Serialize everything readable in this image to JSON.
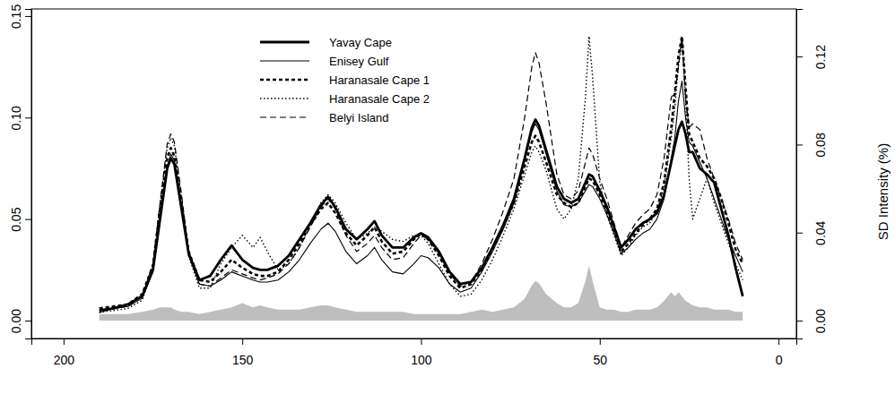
{
  "chart_data": {
    "type": "line",
    "x": [
      190,
      186,
      182,
      178,
      175,
      173,
      171,
      170,
      169,
      167,
      165,
      162,
      159,
      156,
      153,
      150,
      147,
      145,
      143,
      140,
      137,
      134,
      131,
      128,
      126,
      124,
      121,
      118,
      115,
      113,
      111,
      108,
      105,
      102,
      100,
      98,
      95,
      92,
      89,
      86,
      83,
      80,
      77,
      74,
      71,
      69,
      68,
      67,
      65,
      62,
      60,
      58,
      56,
      54,
      53,
      52,
      50,
      48,
      46,
      44,
      42,
      40,
      38,
      36,
      34,
      32,
      30,
      29,
      28,
      27,
      26,
      25,
      24,
      22,
      20,
      18,
      16,
      14,
      12,
      10
    ],
    "xlim": [
      209,
      -5
    ],
    "xticks": [
      200,
      150,
      100,
      50,
      0
    ],
    "ylim": [
      -0.0088,
      0.1535
    ],
    "yticks": [
      {
        "value": 0,
        "label": "0.00"
      },
      {
        "value": 0.05,
        "label": "0.05"
      },
      {
        "value": 0.1,
        "label": "0.10"
      },
      {
        "value": 0.15,
        "label": "0.15"
      }
    ],
    "y2lim": [
      -0.0081,
      0.1416
    ],
    "y2ticks": [
      {
        "value": 0,
        "label": "0.00"
      },
      {
        "value": 0.04,
        "label": "0.04"
      },
      {
        "value": 0.08,
        "label": "0.08"
      },
      {
        "value": 0.12,
        "label": "0.12"
      }
    ],
    "y2label": "SD Intensity (%)",
    "legend": "top-left",
    "series": [
      {
        "name": "Yavay Cape",
        "color": "#000000",
        "line_style": "solid-thick",
        "values": [
          0.005,
          0.006,
          0.008,
          0.012,
          0.025,
          0.05,
          0.075,
          0.08,
          0.077,
          0.055,
          0.033,
          0.02,
          0.022,
          0.03,
          0.037,
          0.03,
          0.026,
          0.025,
          0.025,
          0.027,
          0.032,
          0.04,
          0.048,
          0.057,
          0.061,
          0.056,
          0.045,
          0.04,
          0.045,
          0.049,
          0.042,
          0.036,
          0.036,
          0.041,
          0.043,
          0.041,
          0.034,
          0.024,
          0.018,
          0.019,
          0.026,
          0.036,
          0.047,
          0.06,
          0.08,
          0.095,
          0.099,
          0.096,
          0.084,
          0.066,
          0.06,
          0.058,
          0.06,
          0.068,
          0.072,
          0.071,
          0.064,
          0.056,
          0.046,
          0.036,
          0.04,
          0.045,
          0.048,
          0.05,
          0.053,
          0.062,
          0.078,
          0.086,
          0.094,
          0.098,
          0.092,
          0.083,
          0.083,
          0.075,
          0.072,
          0.068,
          0.055,
          0.042,
          0.026,
          0.012
        ]
      },
      {
        "name": "Enisey Gulf",
        "color": "#000000",
        "line_style": "solid",
        "values": [
          0.004,
          0.006,
          0.007,
          0.011,
          0.024,
          0.05,
          0.076,
          0.082,
          0.079,
          0.056,
          0.032,
          0.018,
          0.017,
          0.02,
          0.024,
          0.022,
          0.02,
          0.019,
          0.019,
          0.02,
          0.024,
          0.03,
          0.038,
          0.045,
          0.048,
          0.044,
          0.034,
          0.028,
          0.032,
          0.036,
          0.03,
          0.024,
          0.023,
          0.028,
          0.032,
          0.031,
          0.026,
          0.018,
          0.014,
          0.016,
          0.024,
          0.034,
          0.045,
          0.058,
          0.079,
          0.093,
          0.097,
          0.094,
          0.082,
          0.064,
          0.057,
          0.056,
          0.058,
          0.064,
          0.067,
          0.066,
          0.06,
          0.052,
          0.043,
          0.033,
          0.036,
          0.04,
          0.043,
          0.045,
          0.05,
          0.06,
          0.08,
          0.09,
          0.108,
          0.118,
          0.1,
          0.088,
          0.086,
          0.078,
          0.07,
          0.06,
          0.05,
          0.04,
          0.032,
          0.024
        ]
      },
      {
        "name": "Haranasale Cape 1",
        "color": "#000000",
        "line_style": "dashed-thick",
        "values": [
          0.006,
          0.007,
          0.008,
          0.013,
          0.027,
          0.055,
          0.08,
          0.085,
          0.081,
          0.058,
          0.034,
          0.02,
          0.019,
          0.024,
          0.03,
          0.026,
          0.023,
          0.022,
          0.022,
          0.024,
          0.03,
          0.038,
          0.047,
          0.055,
          0.058,
          0.053,
          0.043,
          0.037,
          0.042,
          0.046,
          0.039,
          0.033,
          0.034,
          0.04,
          0.043,
          0.04,
          0.032,
          0.022,
          0.016,
          0.018,
          0.025,
          0.035,
          0.046,
          0.058,
          0.076,
          0.088,
          0.091,
          0.088,
          0.078,
          0.062,
          0.058,
          0.056,
          0.058,
          0.066,
          0.07,
          0.069,
          0.062,
          0.054,
          0.045,
          0.034,
          0.038,
          0.043,
          0.047,
          0.05,
          0.055,
          0.068,
          0.095,
          0.112,
          0.13,
          0.14,
          0.115,
          0.092,
          0.088,
          0.08,
          0.076,
          0.07,
          0.06,
          0.048,
          0.035,
          0.028
        ]
      },
      {
        "name": "Haranasale Cape 2",
        "color": "#000000",
        "line_style": "dotted",
        "values": [
          0.004,
          0.005,
          0.006,
          0.01,
          0.026,
          0.057,
          0.085,
          0.09,
          0.086,
          0.06,
          0.032,
          0.016,
          0.016,
          0.028,
          0.036,
          0.042,
          0.036,
          0.041,
          0.034,
          0.025,
          0.028,
          0.036,
          0.047,
          0.058,
          0.062,
          0.058,
          0.048,
          0.04,
          0.043,
          0.046,
          0.044,
          0.04,
          0.039,
          0.042,
          0.042,
          0.038,
          0.028,
          0.018,
          0.012,
          0.013,
          0.02,
          0.03,
          0.042,
          0.055,
          0.072,
          0.083,
          0.086,
          0.083,
          0.074,
          0.055,
          0.05,
          0.055,
          0.07,
          0.11,
          0.14,
          0.12,
          0.068,
          0.052,
          0.042,
          0.032,
          0.036,
          0.042,
          0.046,
          0.048,
          0.054,
          0.066,
          0.09,
          0.105,
          0.125,
          0.138,
          0.11,
          0.07,
          0.05,
          0.06,
          0.07,
          0.058,
          0.048,
          0.038,
          0.028,
          0.02
        ]
      },
      {
        "name": "Belyi Island",
        "color": "#000000",
        "line_style": "dashed",
        "values": [
          0.005,
          0.006,
          0.007,
          0.012,
          0.028,
          0.058,
          0.087,
          0.092,
          0.088,
          0.062,
          0.034,
          0.018,
          0.017,
          0.021,
          0.025,
          0.023,
          0.021,
          0.02,
          0.021,
          0.023,
          0.028,
          0.036,
          0.046,
          0.056,
          0.06,
          0.055,
          0.042,
          0.034,
          0.038,
          0.042,
          0.036,
          0.03,
          0.031,
          0.038,
          0.042,
          0.04,
          0.033,
          0.023,
          0.017,
          0.019,
          0.028,
          0.04,
          0.054,
          0.07,
          0.1,
          0.125,
          0.132,
          0.127,
          0.107,
          0.072,
          0.062,
          0.06,
          0.064,
          0.078,
          0.085,
          0.082,
          0.07,
          0.06,
          0.048,
          0.036,
          0.042,
          0.048,
          0.052,
          0.055,
          0.062,
          0.08,
          0.11,
          0.112,
          0.125,
          0.14,
          0.11,
          0.095,
          0.097,
          0.094,
          0.08,
          0.07,
          0.06,
          0.05,
          0.038,
          0.03
        ]
      },
      {
        "type": "area",
        "axis": "y2",
        "color": "#bebebe",
        "values": [
          0.003,
          0.003,
          0.003,
          0.004,
          0.005,
          0.006,
          0.006,
          0.006,
          0.005,
          0.004,
          0.004,
          0.003,
          0.004,
          0.005,
          0.006,
          0.008,
          0.006,
          0.007,
          0.006,
          0.005,
          0.005,
          0.005,
          0.006,
          0.007,
          0.007,
          0.006,
          0.005,
          0.004,
          0.004,
          0.004,
          0.004,
          0.004,
          0.004,
          0.003,
          0.003,
          0.003,
          0.003,
          0.003,
          0.003,
          0.004,
          0.005,
          0.004,
          0.005,
          0.006,
          0.01,
          0.016,
          0.018,
          0.017,
          0.012,
          0.008,
          0.006,
          0.006,
          0.008,
          0.018,
          0.025,
          0.018,
          0.006,
          0.005,
          0.005,
          0.004,
          0.004,
          0.005,
          0.005,
          0.005,
          0.006,
          0.009,
          0.013,
          0.011,
          0.013,
          0.011,
          0.009,
          0.008,
          0.007,
          0.006,
          0.006,
          0.005,
          0.005,
          0.005,
          0.004,
          0.004
        ]
      }
    ]
  }
}
